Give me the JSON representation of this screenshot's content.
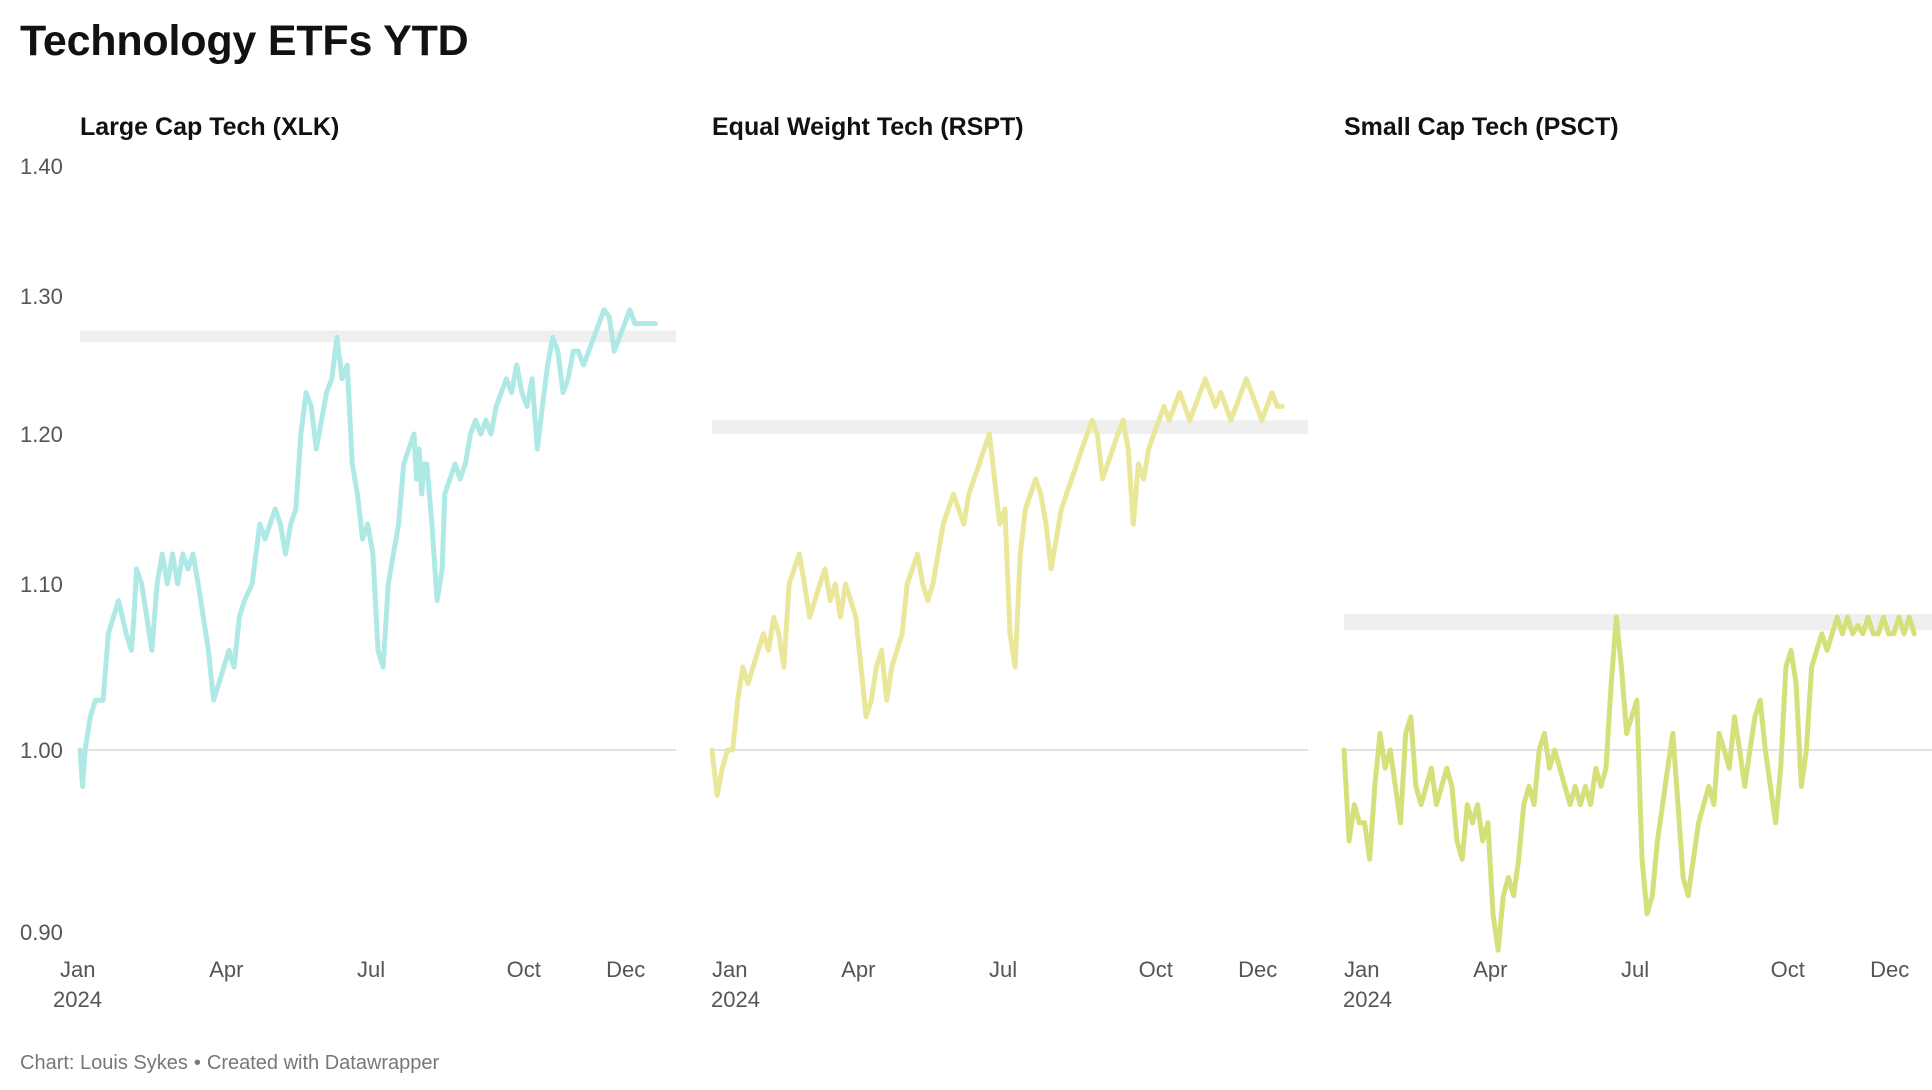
{
  "title": "Technology ETFs YTD",
  "footer": {
    "chart_credit": "Chart: Louis Sykes",
    "separator": "•",
    "created_with": "Created with Datawrapper"
  },
  "chart_data": [
    {
      "type": "line",
      "title": "Large Cap Tech (XLK)",
      "color": "#aee9e6",
      "x_axis": {
        "ticks": [
          "Jan",
          "Apr",
          "Jul",
          "Oct",
          "Dec"
        ],
        "year_label": "2024",
        "range": [
          0,
          11.6
        ]
      },
      "y_axis": {
        "ticks": [
          "1.40",
          "1.30",
          "1.20",
          "1.10",
          "1.00",
          "0.90"
        ],
        "range": [
          0.89,
          1.42
        ],
        "baseline": 1.0
      },
      "band": [
        1.268,
        1.275
      ],
      "x": [
        0.0,
        0.05,
        0.1,
        0.15,
        0.2,
        0.3,
        0.45,
        0.55,
        0.65,
        0.75,
        0.9,
        1.0,
        1.05,
        1.1,
        1.2,
        1.3,
        1.4,
        1.5,
        1.6,
        1.7,
        1.8,
        1.9,
        2.0,
        2.1,
        2.2,
        2.3,
        2.4,
        2.5,
        2.6,
        2.8,
        2.9,
        3.0,
        3.1,
        3.2,
        3.35,
        3.5,
        3.6,
        3.7,
        3.8,
        3.9,
        4.0,
        4.1,
        4.2,
        4.3,
        4.4,
        4.5,
        4.6,
        4.7,
        4.8,
        4.9,
        5.0,
        5.1,
        5.2,
        5.3,
        5.4,
        5.5,
        5.6,
        5.7,
        5.8,
        5.9,
        6.0,
        6.1,
        6.2,
        6.3,
        6.4,
        6.5,
        6.55,
        6.6,
        6.65,
        6.7,
        6.75,
        6.85,
        6.95,
        7.05,
        7.1,
        7.2,
        7.3,
        7.4,
        7.5,
        7.6,
        7.7,
        7.8,
        7.9,
        8.0,
        8.1,
        8.2,
        8.3,
        8.4,
        8.5,
        8.6,
        8.7,
        8.8,
        8.9,
        9.0,
        9.1,
        9.2,
        9.3,
        9.4,
        9.5,
        9.6,
        9.7,
        9.8,
        9.9,
        10.0,
        10.1,
        10.2,
        10.3,
        10.4,
        10.5,
        10.6,
        10.7,
        10.8,
        10.9,
        11.0,
        11.1,
        11.2
      ],
      "values": [
        1.0,
        0.98,
        1.0,
        1.01,
        1.02,
        1.03,
        1.03,
        1.07,
        1.08,
        1.09,
        1.07,
        1.06,
        1.08,
        1.11,
        1.1,
        1.08,
        1.06,
        1.1,
        1.12,
        1.1,
        1.12,
        1.1,
        1.12,
        1.11,
        1.12,
        1.1,
        1.08,
        1.06,
        1.03,
        1.05,
        1.06,
        1.05,
        1.08,
        1.09,
        1.1,
        1.14,
        1.13,
        1.14,
        1.15,
        1.14,
        1.12,
        1.14,
        1.15,
        1.2,
        1.23,
        1.22,
        1.19,
        1.21,
        1.23,
        1.24,
        1.27,
        1.24,
        1.25,
        1.18,
        1.16,
        1.13,
        1.14,
        1.12,
        1.06,
        1.05,
        1.1,
        1.12,
        1.14,
        1.18,
        1.19,
        1.2,
        1.17,
        1.19,
        1.16,
        1.18,
        1.18,
        1.14,
        1.09,
        1.11,
        1.16,
        1.17,
        1.18,
        1.17,
        1.18,
        1.2,
        1.21,
        1.2,
        1.21,
        1.2,
        1.22,
        1.23,
        1.24,
        1.23,
        1.25,
        1.23,
        1.22,
        1.24,
        1.19,
        1.22,
        1.25,
        1.27,
        1.26,
        1.23,
        1.24,
        1.26,
        1.26,
        1.25,
        1.26,
        1.27,
        1.28,
        1.29,
        1.285,
        1.26,
        1.27,
        1.28,
        1.29,
        1.28,
        1.28,
        1.28,
        1.28,
        1.28
      ]
    },
    {
      "type": "line",
      "title": "Equal Weight Tech (RSPT)",
      "color": "#ebe79a",
      "x_axis": {
        "ticks": [
          "Jan",
          "Apr",
          "Jul",
          "Oct",
          "Dec"
        ],
        "year_label": "2024",
        "range": [
          0,
          11.6
        ]
      },
      "y_axis": {
        "range": [
          0.89,
          1.42
        ],
        "baseline": 1.0
      },
      "band": [
        1.2,
        1.21
      ],
      "x": [
        0.0,
        0.1,
        0.2,
        0.3,
        0.4,
        0.5,
        0.6,
        0.7,
        0.8,
        0.9,
        1.0,
        1.1,
        1.2,
        1.3,
        1.4,
        1.5,
        1.6,
        1.7,
        1.8,
        1.9,
        2.0,
        2.1,
        2.2,
        2.3,
        2.4,
        2.5,
        2.6,
        2.7,
        2.8,
        2.9,
        3.0,
        3.1,
        3.2,
        3.3,
        3.4,
        3.5,
        3.6,
        3.7,
        3.8,
        3.9,
        4.0,
        4.1,
        4.2,
        4.3,
        4.4,
        4.5,
        4.6,
        4.7,
        4.8,
        4.9,
        5.0,
        5.1,
        5.2,
        5.3,
        5.4,
        5.5,
        5.6,
        5.7,
        5.8,
        5.9,
        6.0,
        6.1,
        6.2,
        6.3,
        6.4,
        6.5,
        6.6,
        6.7,
        6.8,
        6.9,
        7.0,
        7.1,
        7.2,
        7.3,
        7.4,
        7.5,
        7.6,
        7.7,
        7.8,
        7.9,
        8.0,
        8.1,
        8.2,
        8.3,
        8.4,
        8.5,
        8.6,
        8.7,
        8.8,
        8.9,
        9.0,
        9.1,
        9.2,
        9.3,
        9.4,
        9.5,
        9.6,
        9.7,
        9.8,
        9.9,
        10.0,
        10.1,
        10.2,
        10.3,
        10.4,
        10.5,
        10.6,
        10.7,
        10.8,
        10.9,
        11.0,
        11.1
      ],
      "values": [
        1.0,
        0.975,
        0.99,
        1.0,
        1.0,
        1.03,
        1.05,
        1.04,
        1.05,
        1.06,
        1.07,
        1.06,
        1.08,
        1.07,
        1.05,
        1.1,
        1.11,
        1.12,
        1.1,
        1.08,
        1.09,
        1.1,
        1.11,
        1.09,
        1.1,
        1.08,
        1.1,
        1.09,
        1.08,
        1.05,
        1.02,
        1.03,
        1.05,
        1.06,
        1.03,
        1.05,
        1.06,
        1.07,
        1.1,
        1.11,
        1.12,
        1.1,
        1.09,
        1.1,
        1.12,
        1.14,
        1.15,
        1.16,
        1.15,
        1.14,
        1.16,
        1.17,
        1.18,
        1.19,
        1.2,
        1.17,
        1.14,
        1.15,
        1.07,
        1.05,
        1.12,
        1.15,
        1.16,
        1.17,
        1.16,
        1.14,
        1.11,
        1.13,
        1.15,
        1.16,
        1.17,
        1.18,
        1.19,
        1.2,
        1.21,
        1.2,
        1.17,
        1.18,
        1.19,
        1.2,
        1.21,
        1.19,
        1.14,
        1.18,
        1.17,
        1.19,
        1.2,
        1.21,
        1.22,
        1.21,
        1.22,
        1.23,
        1.22,
        1.21,
        1.22,
        1.23,
        1.24,
        1.23,
        1.22,
        1.23,
        1.22,
        1.21,
        1.22,
        1.23,
        1.24,
        1.23,
        1.22,
        1.21,
        1.22,
        1.23,
        1.22,
        1.22
      ]
    },
    {
      "type": "line",
      "title": "Small Cap Tech (PSCT)",
      "color": "#d6e07a",
      "x_axis": {
        "ticks": [
          "Jan",
          "Apr",
          "Jul",
          "Oct",
          "Dec"
        ],
        "year_label": "2024",
        "range": [
          0,
          11.6
        ]
      },
      "y_axis": {
        "range": [
          0.89,
          1.42
        ],
        "baseline": 1.0
      },
      "band": [
        1.072,
        1.082
      ],
      "x": [
        0.0,
        0.1,
        0.2,
        0.3,
        0.4,
        0.5,
        0.6,
        0.7,
        0.8,
        0.9,
        1.0,
        1.1,
        1.2,
        1.3,
        1.4,
        1.5,
        1.6,
        1.7,
        1.8,
        1.9,
        2.0,
        2.1,
        2.2,
        2.3,
        2.4,
        2.5,
        2.6,
        2.7,
        2.8,
        2.9,
        3.0,
        3.1,
        3.2,
        3.3,
        3.4,
        3.5,
        3.6,
        3.7,
        3.8,
        3.9,
        4.0,
        4.1,
        4.2,
        4.3,
        4.4,
        4.5,
        4.6,
        4.7,
        4.8,
        4.9,
        5.0,
        5.1,
        5.2,
        5.3,
        5.4,
        5.5,
        5.6,
        5.7,
        5.8,
        5.9,
        6.0,
        6.1,
        6.2,
        6.3,
        6.4,
        6.5,
        6.6,
        6.7,
        6.8,
        6.9,
        7.0,
        7.1,
        7.2,
        7.3,
        7.4,
        7.5,
        7.6,
        7.7,
        7.8,
        7.9,
        8.0,
        8.1,
        8.2,
        8.3,
        8.4,
        8.5,
        8.6,
        8.7,
        8.8,
        8.9,
        9.0,
        9.1,
        9.2,
        9.3,
        9.4,
        9.5,
        9.6,
        9.7,
        9.8,
        9.9,
        10.0,
        10.1,
        10.2,
        10.3,
        10.4,
        10.5,
        10.6,
        10.7,
        10.8,
        10.9,
        11.0,
        11.1
      ],
      "values": [
        1.0,
        0.95,
        0.97,
        0.96,
        0.96,
        0.94,
        0.98,
        1.01,
        0.99,
        1.0,
        0.98,
        0.96,
        1.01,
        1.02,
        0.98,
        0.97,
        0.98,
        0.99,
        0.97,
        0.98,
        0.99,
        0.98,
        0.95,
        0.94,
        0.97,
        0.96,
        0.97,
        0.95,
        0.96,
        0.91,
        0.89,
        0.92,
        0.93,
        0.92,
        0.94,
        0.97,
        0.98,
        0.97,
        1.0,
        1.01,
        0.99,
        1.0,
        0.99,
        0.98,
        0.97,
        0.98,
        0.97,
        0.98,
        0.97,
        0.99,
        0.98,
        0.99,
        1.04,
        1.08,
        1.05,
        1.01,
        1.02,
        1.03,
        0.94,
        0.91,
        0.92,
        0.95,
        0.97,
        0.99,
        1.01,
        0.97,
        0.93,
        0.92,
        0.94,
        0.96,
        0.97,
        0.98,
        0.97,
        1.01,
        1.0,
        0.99,
        1.02,
        1.0,
        0.98,
        1.0,
        1.02,
        1.03,
        1.0,
        0.98,
        0.96,
        0.99,
        1.05,
        1.06,
        1.04,
        0.98,
        1.0,
        1.05,
        1.06,
        1.07,
        1.06,
        1.07,
        1.08,
        1.07,
        1.08,
        1.07,
        1.075,
        1.07,
        1.08,
        1.07,
        1.07,
        1.08,
        1.07,
        1.07,
        1.08,
        1.07,
        1.08,
        1.07
      ]
    }
  ]
}
